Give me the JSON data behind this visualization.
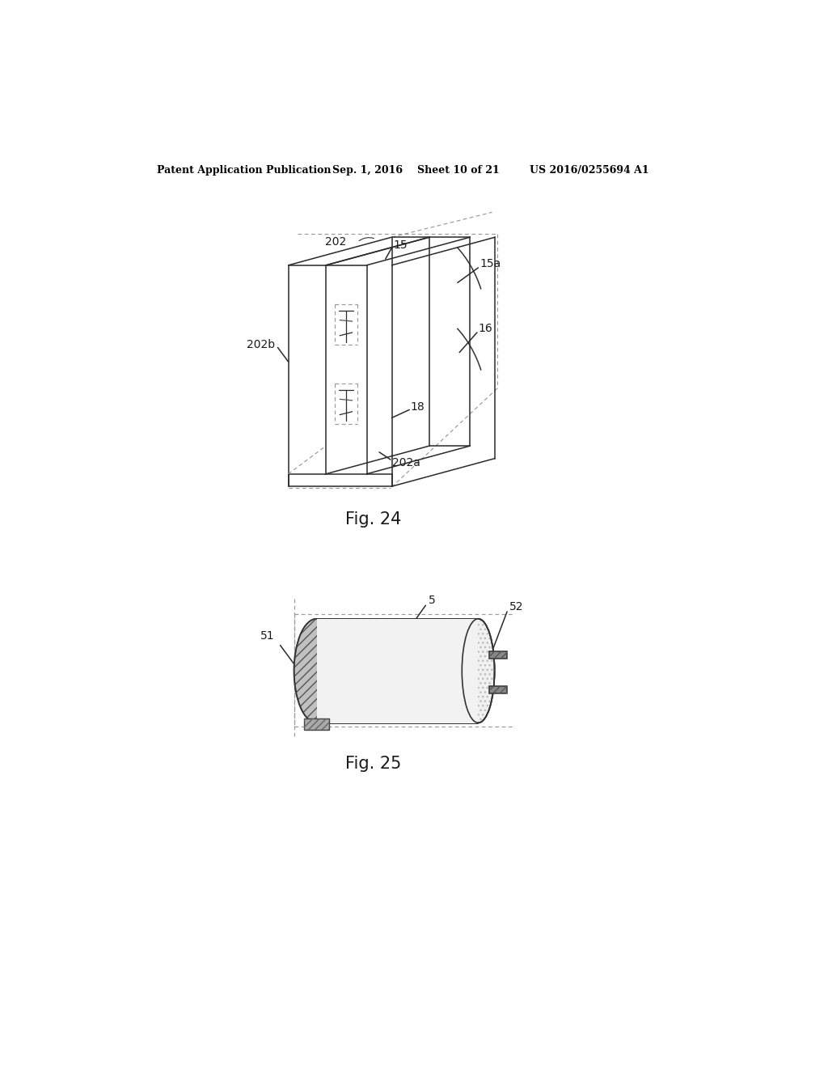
{
  "background_color": "#ffffff",
  "header_text": "Patent Application Publication",
  "header_date": "Sep. 1, 2016",
  "header_sheet": "Sheet 10 of 21",
  "header_patent": "US 2016/0255694 A1",
  "fig24_caption": "Fig. 24",
  "fig25_caption": "Fig. 25"
}
